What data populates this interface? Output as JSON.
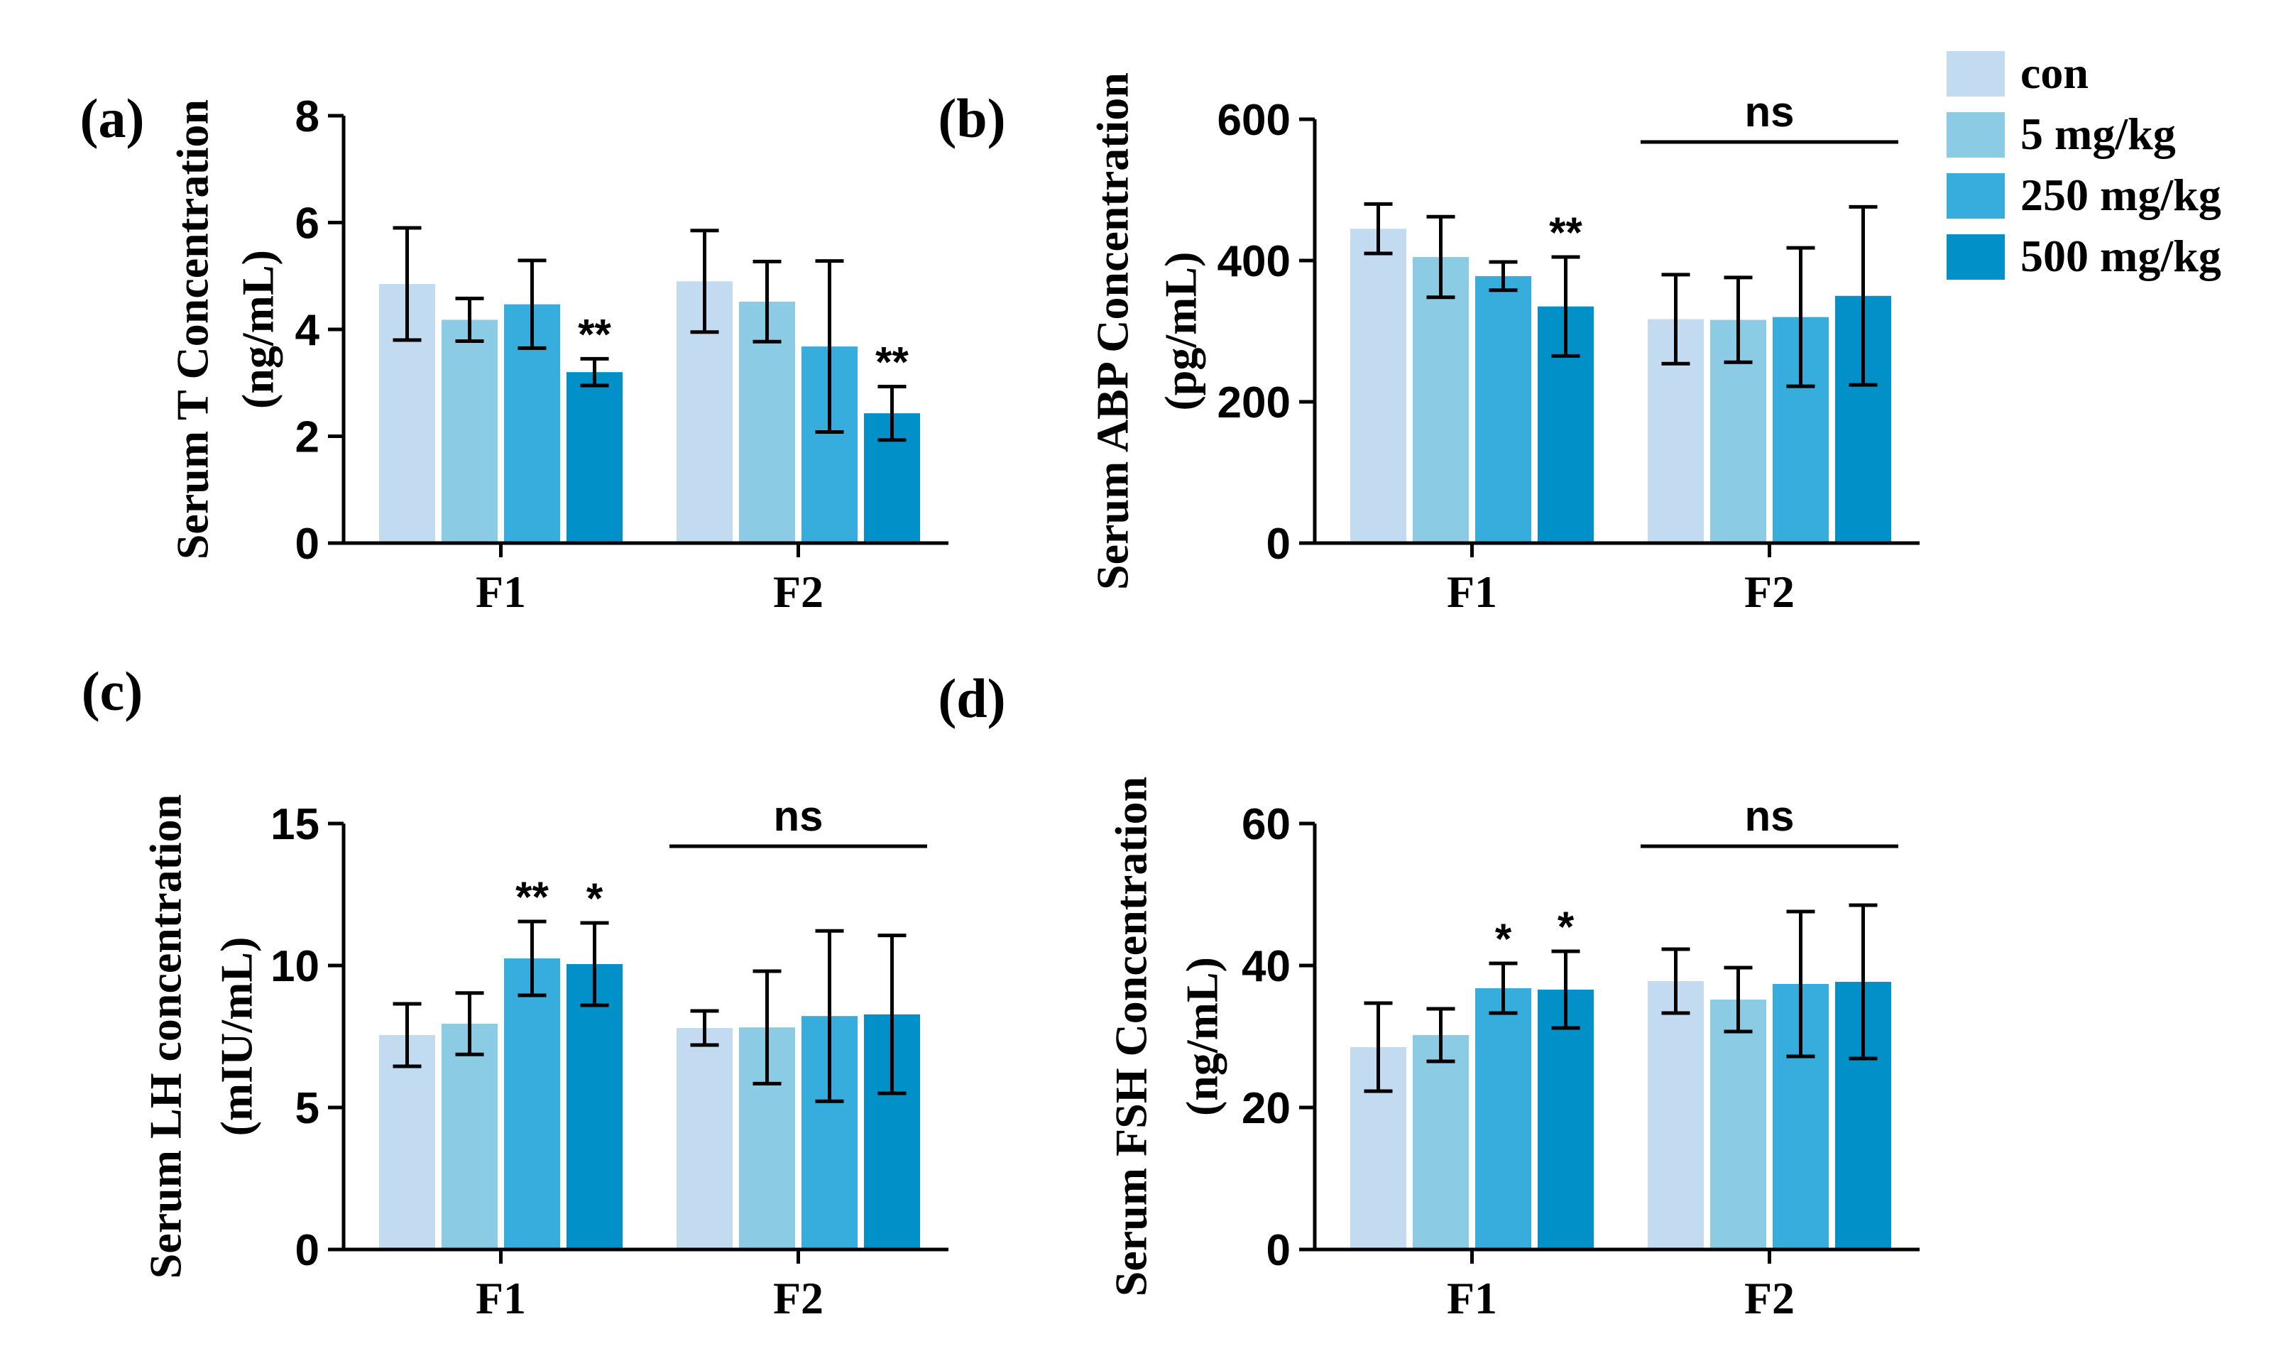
{
  "legend": [
    {
      "label": "con",
      "color": "#c2dbf0"
    },
    {
      "label": "5 mg/kg",
      "color": "#8ccbe4"
    },
    {
      "label": "250 mg/kg",
      "color": "#36addc"
    },
    {
      "label": "500 mg/kg",
      "color": "#0190c8"
    }
  ],
  "chart_data": [
    {
      "type": "bar",
      "panel": "(a)",
      "ylabel_line1": "Serum T Concentration",
      "ylabel_line2": "(ng/mL)",
      "categories": [
        "F1",
        "F2"
      ],
      "ylim": [
        0,
        8
      ],
      "yticks": [
        0,
        2,
        4,
        6,
        8
      ],
      "series": [
        {
          "name": "con",
          "values": [
            4.85,
            4.9
          ],
          "errors": [
            1.05,
            0.95
          ]
        },
        {
          "name": "5 mg/kg",
          "values": [
            4.18,
            4.52
          ],
          "errors": [
            0.4,
            0.75
          ]
        },
        {
          "name": "250 mg/kg",
          "values": [
            4.47,
            3.68
          ],
          "errors": [
            0.82,
            1.6
          ]
        },
        {
          "name": "500 mg/kg",
          "values": [
            3.2,
            2.43
          ],
          "errors": [
            0.25,
            0.5
          ]
        }
      ],
      "marks": [
        {
          "category": 0,
          "series": 3,
          "text": "**"
        },
        {
          "category": 1,
          "series": 3,
          "text": "**"
        }
      ],
      "ns_groups": []
    },
    {
      "type": "bar",
      "panel": "(b)",
      "ylabel_line1": "Serum ABP Concentration",
      "ylabel_line2": "(pg/mL)",
      "categories": [
        "F1",
        "F2"
      ],
      "ylim": [
        0,
        600
      ],
      "yticks": [
        0,
        200,
        400,
        600
      ],
      "series": [
        {
          "name": "con",
          "values": [
            445,
            317
          ],
          "errors": [
            35,
            63
          ]
        },
        {
          "name": "5 mg/kg",
          "values": [
            405,
            316
          ],
          "errors": [
            57,
            60
          ]
        },
        {
          "name": "250 mg/kg",
          "values": [
            378,
            320
          ],
          "errors": [
            20,
            98
          ]
        },
        {
          "name": "500 mg/kg",
          "values": [
            335,
            350
          ],
          "errors": [
            70,
            126
          ]
        }
      ],
      "marks": [
        {
          "category": 0,
          "series": 3,
          "text": "**"
        }
      ],
      "ns_groups": [
        {
          "category": 1,
          "text": "ns"
        }
      ]
    },
    {
      "type": "bar",
      "panel": "(c)",
      "ylabel_line1": "Serum LH concentration",
      "ylabel_line2": "(mIU/mL)",
      "categories": [
        "F1",
        "F2"
      ],
      "ylim": [
        0,
        15
      ],
      "yticks": [
        0,
        5,
        10,
        15
      ],
      "series": [
        {
          "name": "con",
          "values": [
            7.55,
            7.8
          ],
          "errors": [
            1.1,
            0.6
          ]
        },
        {
          "name": "5 mg/kg",
          "values": [
            7.95,
            7.82
          ],
          "errors": [
            1.08,
            1.98
          ]
        },
        {
          "name": "250 mg/kg",
          "values": [
            10.25,
            8.22
          ],
          "errors": [
            1.3,
            3.0
          ]
        },
        {
          "name": "500 mg/kg",
          "values": [
            10.05,
            8.28
          ],
          "errors": [
            1.45,
            2.78
          ]
        }
      ],
      "marks": [
        {
          "category": 0,
          "series": 2,
          "text": "**"
        },
        {
          "category": 0,
          "series": 3,
          "text": "*"
        }
      ],
      "ns_groups": [
        {
          "category": 1,
          "text": "ns"
        }
      ]
    },
    {
      "type": "bar",
      "panel": "(d)",
      "ylabel_line1": "Serum FSH Concentration",
      "ylabel_line2": "(ng/mL)",
      "categories": [
        "F1",
        "F2"
      ],
      "ylim": [
        0,
        60
      ],
      "yticks": [
        0,
        20,
        40,
        60
      ],
      "series": [
        {
          "name": "con",
          "values": [
            28.5,
            37.8
          ],
          "errors": [
            6.2,
            4.5
          ]
        },
        {
          "name": "5 mg/kg",
          "values": [
            30.2,
            35.2
          ],
          "errors": [
            3.7,
            4.5
          ]
        },
        {
          "name": "250 mg/kg",
          "values": [
            36.8,
            37.4
          ],
          "errors": [
            3.5,
            10.2
          ]
        },
        {
          "name": "500 mg/kg",
          "values": [
            36.6,
            37.7
          ],
          "errors": [
            5.4,
            10.8
          ]
        }
      ],
      "marks": [
        {
          "category": 0,
          "series": 2,
          "text": "*"
        },
        {
          "category": 0,
          "series": 3,
          "text": "*"
        }
      ],
      "ns_groups": [
        {
          "category": 1,
          "text": "ns"
        }
      ]
    }
  ]
}
